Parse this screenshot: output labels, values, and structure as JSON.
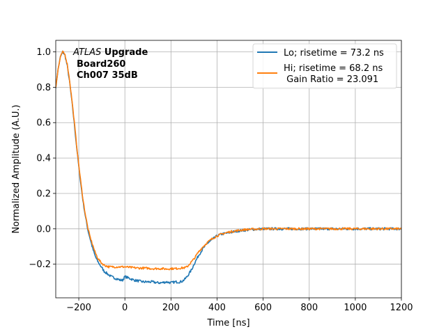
{
  "chart_data": {
    "type": "line",
    "title": "",
    "xlabel": "Time [ns]",
    "ylabel": "Normalized Amplitude (A.U.)",
    "xlim": [
      -300,
      1200
    ],
    "ylim": [
      -0.39,
      1.065
    ],
    "xticks": [
      -200,
      0,
      200,
      400,
      600,
      800,
      1000,
      1200
    ],
    "xtick_labels": [
      "−200",
      "0",
      "200",
      "400",
      "600",
      "800",
      "1000",
      "1200"
    ],
    "yticks": [
      -0.2,
      0.0,
      0.2,
      0.4,
      0.6,
      0.8,
      1.0
    ],
    "ytick_labels": [
      "−0.2",
      "0.0",
      "0.2",
      "0.4",
      "0.6",
      "0.8",
      "1.0"
    ],
    "grid": true,
    "legend_position": "top-right",
    "annotation": {
      "line1_italic": "ATLAS",
      "line1_bold": " Upgrade",
      "line2": "Board260",
      "line3": "Ch007 35dB"
    },
    "series": [
      {
        "name": "Lo; risetime = 73.2 ns",
        "color": "#1f77b4",
        "x": [
          -300,
          -290,
          -280,
          -270,
          -260,
          -250,
          -240,
          -230,
          -220,
          -210,
          -200,
          -190,
          -180,
          -170,
          -160,
          -150,
          -140,
          -130,
          -120,
          -110,
          -100,
          -90,
          -80,
          -70,
          -60,
          -50,
          -40,
          -30,
          -20,
          -10,
          0,
          20,
          40,
          60,
          80,
          100,
          120,
          140,
          160,
          180,
          200,
          220,
          240,
          250,
          260,
          270,
          280,
          290,
          300,
          320,
          340,
          360,
          380,
          400,
          420,
          440,
          460,
          480,
          500,
          520,
          540,
          560,
          580,
          600,
          650,
          700,
          750,
          800,
          850,
          900,
          950,
          1000,
          1050,
          1100,
          1150,
          1200
        ],
        "y": [
          0.8,
          0.9,
          0.97,
          1.0,
          0.98,
          0.92,
          0.83,
          0.72,
          0.6,
          0.47,
          0.35,
          0.24,
          0.14,
          0.06,
          -0.01,
          -0.06,
          -0.11,
          -0.15,
          -0.18,
          -0.2,
          -0.22,
          -0.24,
          -0.25,
          -0.26,
          -0.27,
          -0.275,
          -0.28,
          -0.285,
          -0.29,
          -0.29,
          -0.27,
          -0.28,
          -0.29,
          -0.295,
          -0.3,
          -0.3,
          -0.3,
          -0.305,
          -0.305,
          -0.3,
          -0.305,
          -0.3,
          -0.3,
          -0.295,
          -0.285,
          -0.27,
          -0.25,
          -0.23,
          -0.2,
          -0.15,
          -0.11,
          -0.08,
          -0.06,
          -0.04,
          -0.03,
          -0.025,
          -0.02,
          -0.015,
          -0.01,
          -0.008,
          -0.005,
          -0.003,
          -0.002,
          0.0,
          0.0,
          0.0,
          0.0,
          0.0,
          0.0,
          0.0,
          0.0,
          0.0,
          0.0,
          0.0,
          0.0,
          0.0
        ]
      },
      {
        "name": "Hi; risetime = 68.2 ns\n Gain Ratio = 23.091",
        "color": "#ff7f0e",
        "x": [
          -300,
          -290,
          -280,
          -270,
          -260,
          -250,
          -240,
          -230,
          -220,
          -210,
          -200,
          -190,
          -180,
          -170,
          -160,
          -150,
          -140,
          -130,
          -120,
          -110,
          -100,
          -90,
          -80,
          -70,
          -60,
          -50,
          -40,
          -30,
          -20,
          -10,
          0,
          20,
          40,
          60,
          80,
          100,
          120,
          140,
          160,
          180,
          200,
          220,
          240,
          260,
          270,
          280,
          290,
          300,
          320,
          340,
          360,
          380,
          400,
          420,
          440,
          460,
          480,
          500,
          520,
          540,
          560,
          580,
          600,
          650,
          700,
          750,
          800,
          850,
          900,
          950,
          1000,
          1050,
          1100,
          1150,
          1200
        ],
        "y": [
          0.8,
          0.9,
          0.97,
          1.0,
          0.985,
          0.93,
          0.84,
          0.73,
          0.61,
          0.48,
          0.36,
          0.25,
          0.15,
          0.07,
          0.0,
          -0.05,
          -0.09,
          -0.13,
          -0.16,
          -0.18,
          -0.195,
          -0.205,
          -0.21,
          -0.215,
          -0.215,
          -0.215,
          -0.215,
          -0.215,
          -0.215,
          -0.215,
          -0.215,
          -0.218,
          -0.22,
          -0.222,
          -0.222,
          -0.223,
          -0.225,
          -0.225,
          -0.225,
          -0.227,
          -0.225,
          -0.225,
          -0.222,
          -0.22,
          -0.215,
          -0.2,
          -0.185,
          -0.17,
          -0.13,
          -0.1,
          -0.075,
          -0.055,
          -0.04,
          -0.03,
          -0.022,
          -0.016,
          -0.012,
          -0.008,
          -0.005,
          -0.003,
          -0.002,
          -0.001,
          0.0,
          0.0,
          0.0,
          0.0,
          0.0,
          0.0,
          0.0,
          0.0,
          0.0,
          0.0,
          0.0,
          0.0,
          0.0
        ]
      }
    ]
  }
}
